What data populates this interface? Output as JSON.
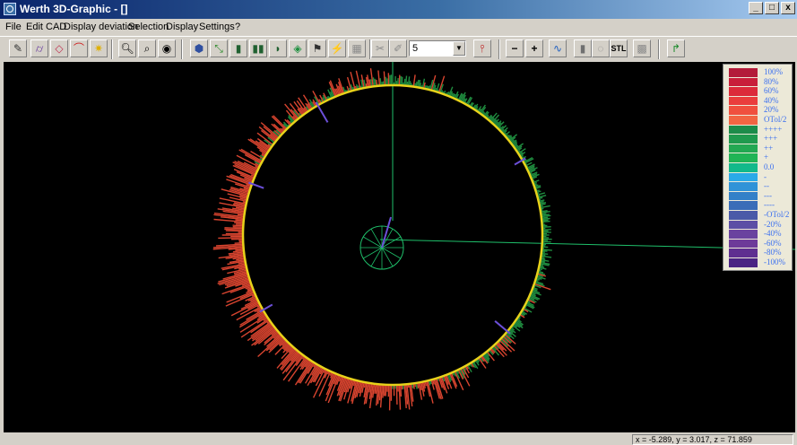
{
  "window": {
    "title": "Werth 3D-Graphic - []",
    "buttons": [
      "_",
      "□",
      "x"
    ]
  },
  "menu": {
    "items": [
      "File",
      "Edit CAD",
      "Display deviation",
      "Selection",
      "Display",
      "Settings",
      "?"
    ]
  },
  "toolbar": {
    "combo_value": "5",
    "minus_label": "−",
    "plus_label": "+",
    "stl_label": "STL",
    "icons": [
      "pencil-icon",
      "cylinder-icon",
      "eraser-icon",
      "curve-icon",
      "sun-icon",
      "zoom-in-icon",
      "zoom-out-icon",
      "eye-icon",
      "cube-icon",
      "fit-icon",
      "element-icon",
      "element-pair-icon",
      "element-arc-icon",
      "diamond-icon",
      "flag-icon",
      "measure-icon",
      "grid-icon",
      "wrench-icon",
      "pencil-erase-icon",
      "probe-icon",
      "minus-icon",
      "plus-icon",
      "wave-icon",
      "cylinder-gray-icon",
      "bottle-icon",
      "stl-icon",
      "pattern-icon",
      "exit-icon"
    ]
  },
  "legend": {
    "entries": [
      {
        "label": "100%",
        "color": "#b31b3a"
      },
      {
        "label": "80%",
        "color": "#c81e3a"
      },
      {
        "label": "60%",
        "color": "#dc2a3a"
      },
      {
        "label": "40%",
        "color": "#ea3d3c"
      },
      {
        "label": "20%",
        "color": "#f0503e"
      },
      {
        "label": "OTol/2",
        "color": "#f26543"
      },
      {
        "label": "++++",
        "color": "#1c8c4a"
      },
      {
        "label": "+++",
        "color": "#1f9a4e"
      },
      {
        "label": "++",
        "color": "#22a852"
      },
      {
        "label": "+",
        "color": "#20b455"
      },
      {
        "label": "0.0",
        "color": "#12b98a"
      },
      {
        "label": "-",
        "color": "#2aaae8"
      },
      {
        "label": "--",
        "color": "#2f93d8"
      },
      {
        "label": "---",
        "color": "#3380c8"
      },
      {
        "label": "----",
        "color": "#3a6db8"
      },
      {
        "label": "-OTol/2",
        "color": "#4a5aa8"
      },
      {
        "label": "-20%",
        "color": "#5c4ea5"
      },
      {
        "label": "-40%",
        "color": "#6a429f"
      },
      {
        "label": "-60%",
        "color": "#6d3a99"
      },
      {
        "label": "-80%",
        "color": "#5f2f90"
      },
      {
        "label": "-100%",
        "color": "#4b2483"
      }
    ]
  },
  "status": {
    "coords": "x = -5.289, y = 3.017, z = 71.859"
  },
  "colors": {
    "background": "#000000",
    "circle": "#e8d21a",
    "axis": "#1fbf6a",
    "positive": "#d8442f",
    "negative": "#1f8c3f",
    "probe": "#6b4fd8"
  }
}
